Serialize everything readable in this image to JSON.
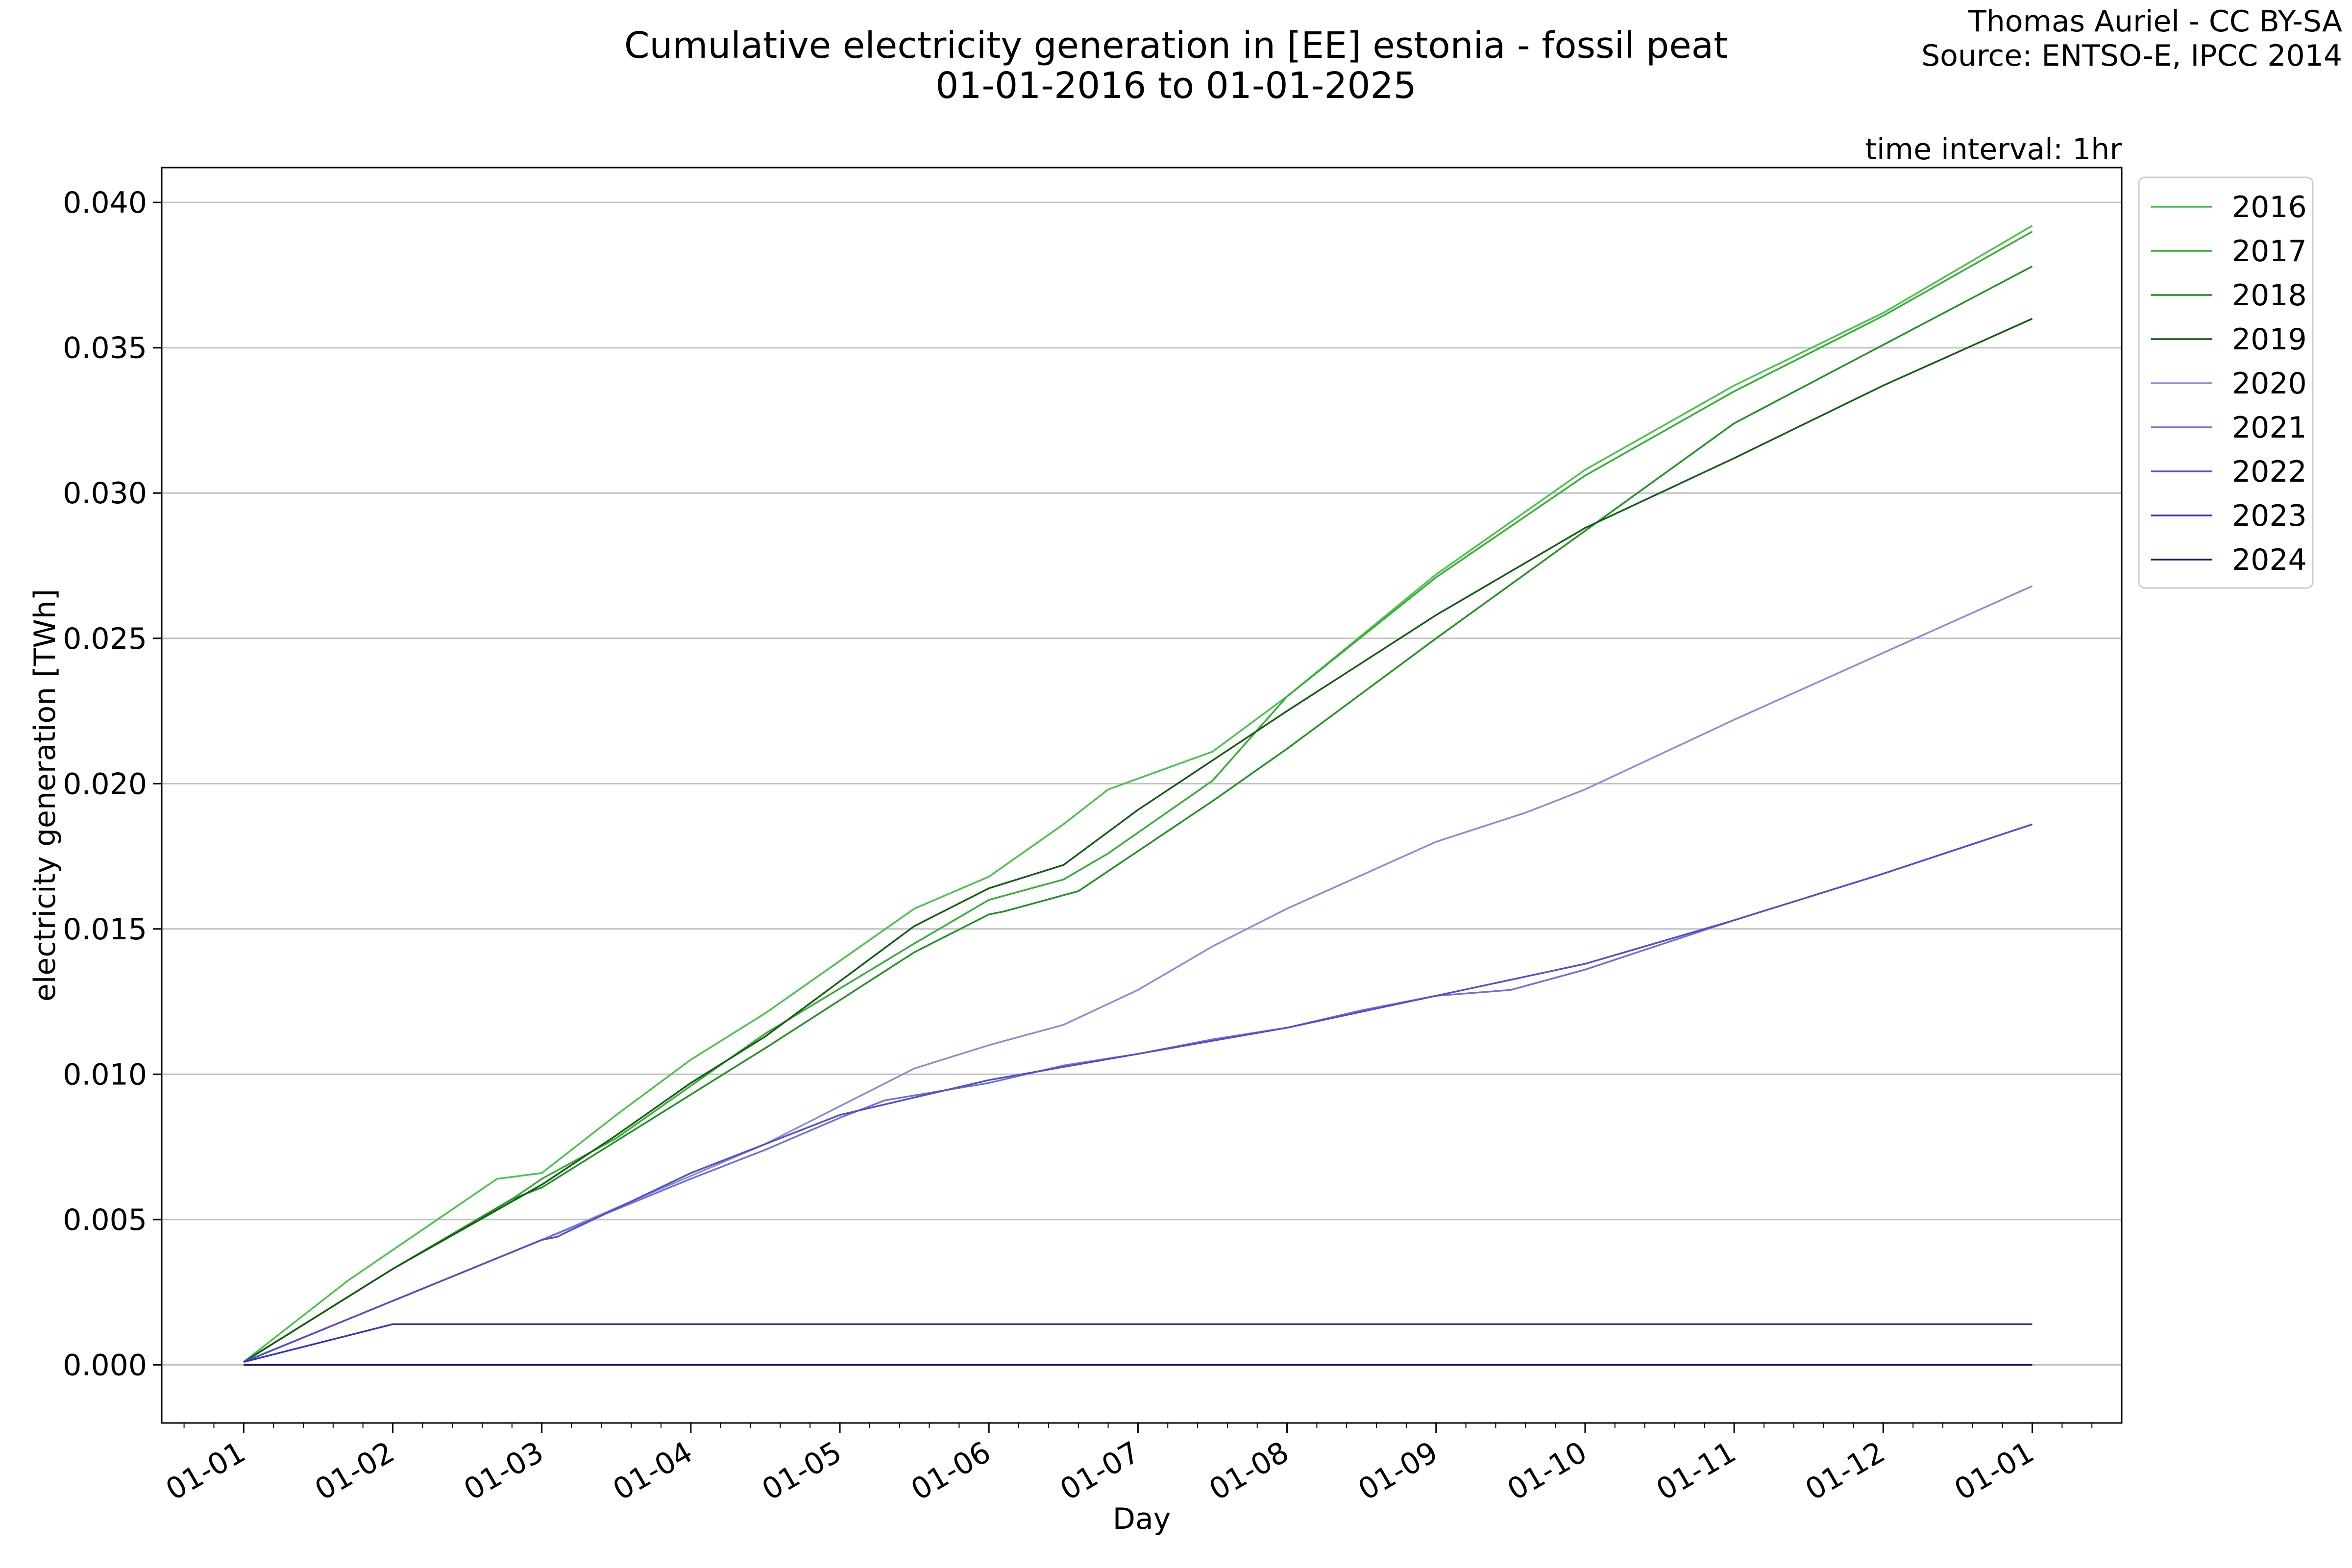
{
  "chart_data": {
    "type": "line",
    "title": "Cumulative electricity generation in [EE] estonia - fossil peat",
    "subtitle": "01-01-2016 to 01-01-2025",
    "credit": [
      "Thomas Auriel - CC BY-SA",
      "Source: ENTSO-E, IPCC 2014"
    ],
    "annotation": "time interval: 1hr",
    "xlabel": "Day",
    "ylabel": "electricity generation [TWh]",
    "x_unit": "months since 01-01",
    "xlim": [
      -0.55,
      12.6
    ],
    "ylim": [
      -0.002,
      0.0412
    ],
    "x_ticks": [
      0,
      1,
      2,
      3,
      4,
      5,
      6,
      7,
      8,
      9,
      10,
      11,
      12
    ],
    "x_tick_labels": [
      "01-01",
      "01-02",
      "01-03",
      "01-04",
      "01-05",
      "01-06",
      "01-07",
      "01-08",
      "01-09",
      "01-10",
      "01-11",
      "01-12",
      "01-01"
    ],
    "y_ticks": [
      0.0,
      0.005,
      0.01,
      0.015,
      0.02,
      0.025,
      0.03,
      0.035,
      0.04
    ],
    "y_tick_labels": [
      "0.000",
      "0.005",
      "0.010",
      "0.015",
      "0.020",
      "0.025",
      "0.030",
      "0.035",
      "0.040"
    ],
    "grid": "horizontal",
    "legend_position": "outside-top-right",
    "series": [
      {
        "name": "2016",
        "color": "#48c448",
        "x": [
          0,
          0.7,
          1.7,
          2.0,
          2.5,
          3.0,
          3.5,
          4.5,
          5.0,
          5.5,
          5.8,
          6.5,
          7.0,
          8.0,
          9.0,
          10.0,
          11.0,
          12.0
        ],
        "y": [
          0.0001,
          0.0029,
          0.0064,
          0.0066,
          0.0086,
          0.0105,
          0.0121,
          0.0157,
          0.0168,
          0.0186,
          0.0198,
          0.0211,
          0.023,
          0.0272,
          0.0308,
          0.0337,
          0.0362,
          0.0392
        ]
      },
      {
        "name": "2017",
        "color": "#33b033",
        "x": [
          0,
          1.0,
          1.8,
          2.0,
          2.5,
          3.0,
          3.5,
          4.5,
          5.0,
          5.5,
          5.8,
          6.5,
          7.0,
          8.0,
          9.0,
          10.0,
          11.0,
          12.0
        ],
        "y": [
          0.0001,
          0.0033,
          0.0057,
          0.0064,
          0.0078,
          0.0096,
          0.0114,
          0.0145,
          0.016,
          0.0167,
          0.0176,
          0.0201,
          0.023,
          0.0271,
          0.0306,
          0.0335,
          0.0361,
          0.039
        ]
      },
      {
        "name": "2018",
        "color": "#1f941f",
        "x": [
          0,
          1.0,
          1.8,
          2.0,
          2.5,
          3.0,
          3.5,
          4.5,
          5.0,
          5.1,
          5.6,
          6.5,
          7.0,
          8.0,
          9.0,
          10.0,
          11.0,
          12.0
        ],
        "y": [
          0.0001,
          0.0033,
          0.0057,
          0.0061,
          0.0077,
          0.0093,
          0.0109,
          0.0142,
          0.0155,
          0.0156,
          0.0163,
          0.0194,
          0.0212,
          0.025,
          0.0287,
          0.0324,
          0.0351,
          0.0378
        ]
      },
      {
        "name": "2019",
        "color": "#125d12",
        "x": [
          0,
          1.0,
          2.0,
          2.5,
          3.0,
          3.5,
          4.5,
          5.0,
          5.5,
          6.0,
          7.0,
          8.0,
          8.7,
          9.0,
          10.0,
          11.0,
          12.0
        ],
        "y": [
          0.0001,
          0.0033,
          0.0062,
          0.0079,
          0.0097,
          0.0113,
          0.0151,
          0.0164,
          0.0172,
          0.0191,
          0.0225,
          0.0258,
          0.0279,
          0.0288,
          0.0312,
          0.0337,
          0.036
        ]
      },
      {
        "name": "2020",
        "color": "#8a8ae0",
        "x": [
          0,
          1.0,
          2.0,
          3.0,
          3.5,
          4.0,
          4.5,
          5.0,
          5.5,
          6.0,
          6.5,
          7.0,
          8.0,
          8.6,
          9.0,
          10.0,
          11.0,
          12.0
        ],
        "y": [
          0.0001,
          0.0022,
          0.0043,
          0.0065,
          0.0076,
          0.0089,
          0.0102,
          0.011,
          0.0117,
          0.0129,
          0.0144,
          0.0157,
          0.018,
          0.019,
          0.0198,
          0.0222,
          0.0245,
          0.0268
        ]
      },
      {
        "name": "2021",
        "color": "#6f6fdf",
        "x": [
          0,
          1.0,
          2.0,
          3.0,
          3.5,
          4.0,
          4.3,
          5.0,
          5.5,
          6.0,
          6.5,
          7.0,
          7.5,
          8.0,
          8.5,
          9.0,
          10.0,
          11.0,
          12.0
        ],
        "y": [
          0.0001,
          0.0022,
          0.0043,
          0.0064,
          0.0074,
          0.0085,
          0.0091,
          0.0097,
          0.0103,
          0.0107,
          0.0112,
          0.0116,
          0.0122,
          0.0127,
          0.0129,
          0.0136,
          0.0153,
          0.0169,
          0.0186
        ]
      },
      {
        "name": "2022",
        "color": "#4f4fcf",
        "x": [
          0,
          1.0,
          2.0,
          2.1,
          3.0,
          4.0,
          5.0,
          6.0,
          7.0,
          8.0,
          9.0,
          10.0,
          11.0,
          12.0
        ],
        "y": [
          0.0001,
          0.0022,
          0.0043,
          0.0044,
          0.0066,
          0.0086,
          0.0098,
          0.0107,
          0.0116,
          0.0127,
          0.0138,
          0.0153,
          0.0169,
          0.0186
        ]
      },
      {
        "name": "2023",
        "color": "#3434c4",
        "x": [
          0,
          1.0,
          12.0
        ],
        "y": [
          0.0001,
          0.0014,
          0.0014
        ]
      },
      {
        "name": "2024",
        "color": "#1a1a5c",
        "x": [
          0,
          12.0
        ],
        "y": [
          0.0,
          0.0
        ]
      }
    ]
  }
}
